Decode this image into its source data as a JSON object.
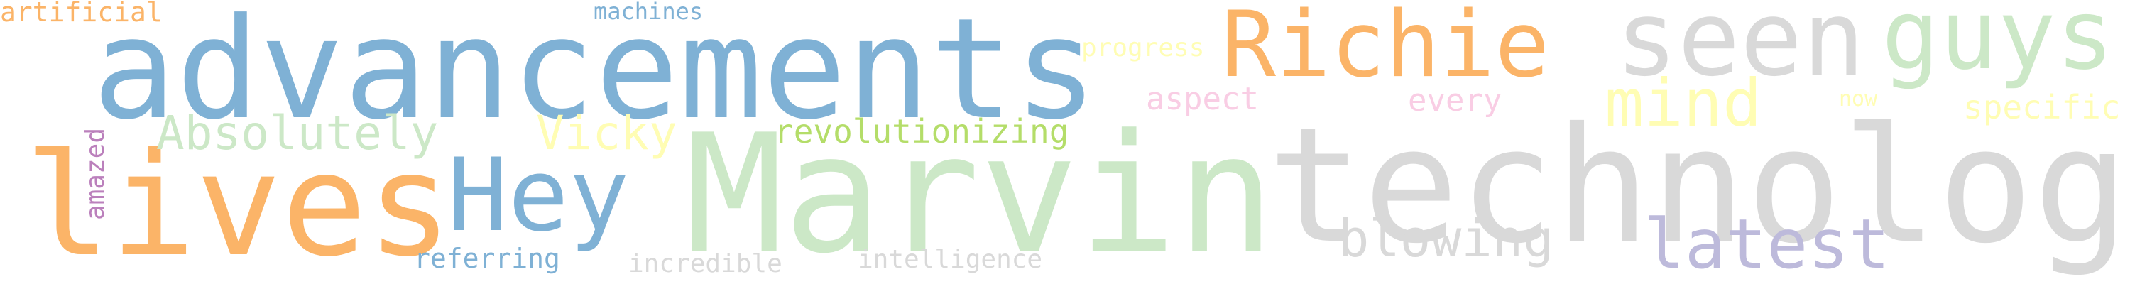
{
  "words": [
    {
      "text": "advancements",
      "color": "#7fb1d5"
    },
    {
      "text": "technology",
      "color": "#d9d9d9"
    },
    {
      "text": "Marvin",
      "color": "#cce8c7"
    },
    {
      "text": "lives",
      "color": "#fbb468"
    },
    {
      "text": "Richie",
      "color": "#fbb468"
    },
    {
      "text": "seen",
      "color": "#d9d9d9"
    },
    {
      "text": "guys",
      "color": "#cce8c7"
    },
    {
      "text": "Hey",
      "color": "#7fb1d5"
    },
    {
      "text": "mind",
      "color": "#fffdb4"
    },
    {
      "text": "latest",
      "color": "#bdbadb"
    },
    {
      "text": "blowing",
      "color": "#d9d9d9"
    },
    {
      "text": "Absolutely",
      "color": "#cce8c7"
    },
    {
      "text": "Vicky",
      "color": "#fffdb4"
    },
    {
      "text": "revolutionizing",
      "color": "#b4dd69"
    },
    {
      "text": "artificial",
      "color": "#fbb468"
    },
    {
      "text": "machines",
      "color": "#7fb1d5"
    },
    {
      "text": "progress",
      "color": "#fffdb4"
    },
    {
      "text": "aspect",
      "color": "#f9cde4"
    },
    {
      "text": "every",
      "color": "#f9cde4"
    },
    {
      "text": "now",
      "color": "#fffdb4"
    },
    {
      "text": "specific",
      "color": "#fffdb4"
    },
    {
      "text": "amazed",
      "color": "#bb80bc"
    },
    {
      "text": "referring",
      "color": "#7fb1d5"
    },
    {
      "text": "incredible",
      "color": "#d9d9d9"
    },
    {
      "text": "intelligence",
      "color": "#d9d9d9"
    }
  ]
}
